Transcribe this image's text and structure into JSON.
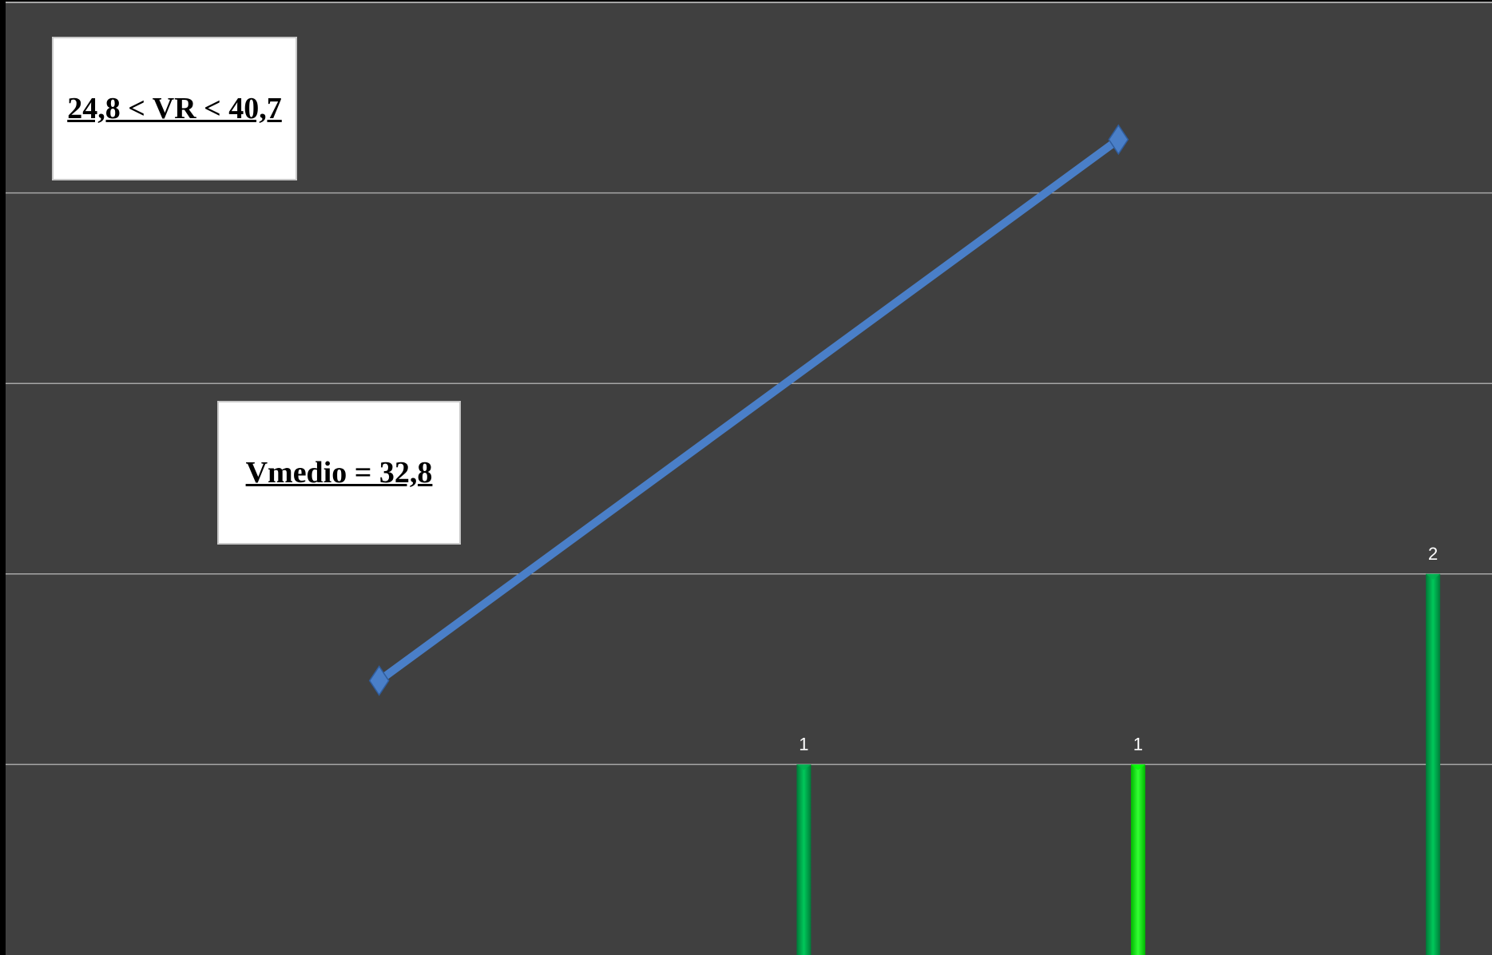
{
  "chart_data": {
    "type": "bar+line",
    "annotations": {
      "range": "24,8 < VR < 40,7",
      "mean": "Vmedio = 32,8"
    },
    "ylim": [
      0,
      5
    ],
    "grid": true,
    "bar_series": {
      "x": [
        1.35,
        2.2,
        2.95
      ],
      "values": [
        1,
        1,
        2
      ],
      "labels": [
        "1",
        "1",
        "2"
      ],
      "colors": [
        "#00b050",
        "#00ff00",
        "#00b050"
      ]
    },
    "line_series": {
      "x": [
        0.27,
        2.15
      ],
      "values": [
        1.44,
        4.28
      ],
      "color": "#4a7fc8"
    },
    "xlim": [
      -0.68,
      3.1
    ],
    "colors": {
      "plot_background": "#404040",
      "slide_background": "#000000",
      "gridline": "#a6a6a6"
    }
  }
}
